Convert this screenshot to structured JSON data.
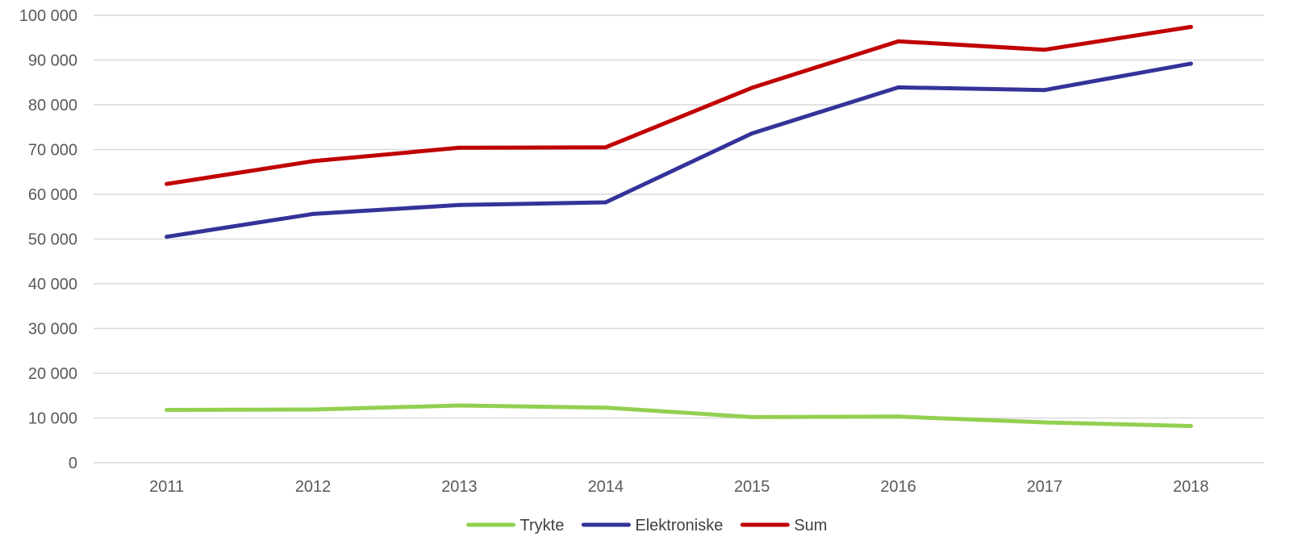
{
  "chart_data": {
    "type": "line",
    "title": "",
    "xlabel": "",
    "ylabel": "",
    "categories": [
      "2011",
      "2012",
      "2013",
      "2014",
      "2015",
      "2016",
      "2017",
      "2018"
    ],
    "ylim": [
      0,
      100000
    ],
    "yticks": [
      {
        "value": 0,
        "label": "0"
      },
      {
        "value": 10000,
        "label": "10 000"
      },
      {
        "value": 20000,
        "label": "20 000"
      },
      {
        "value": 30000,
        "label": "30 000"
      },
      {
        "value": 40000,
        "label": "40 000"
      },
      {
        "value": 50000,
        "label": "50 000"
      },
      {
        "value": 60000,
        "label": "60 000"
      },
      {
        "value": 70000,
        "label": "70 000"
      },
      {
        "value": 80000,
        "label": "80 000"
      },
      {
        "value": 90000,
        "label": "90 000"
      },
      {
        "value": 100000,
        "label": "100 000"
      }
    ],
    "grid": true,
    "legend": "bottom-center",
    "series": [
      {
        "name": "Trykte",
        "color": "#92D050",
        "values": [
          11800,
          11900,
          12800,
          12300,
          10200,
          10300,
          9000,
          8200
        ]
      },
      {
        "name": "Elektroniske",
        "color": "#333399",
        "values": [
          50500,
          55600,
          57600,
          58200,
          73600,
          83900,
          83300,
          89200
        ]
      },
      {
        "name": "Sum",
        "color": "#C00000",
        "values": [
          62300,
          67400,
          70400,
          70500,
          83800,
          94200,
          92300,
          97400
        ]
      }
    ]
  }
}
